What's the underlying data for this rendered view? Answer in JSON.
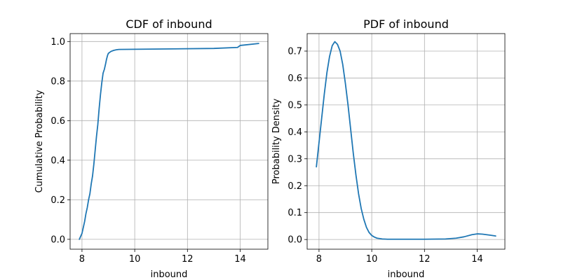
{
  "colors": {
    "line": "#1f77b4",
    "grid": "#b0b0b0"
  },
  "chart_data": [
    {
      "type": "line",
      "title": "CDF of inbound",
      "xlabel": "inbound",
      "ylabel": "Cumulative Probability",
      "xlim": [
        7.55,
        15.05
      ],
      "ylim": [
        -0.05,
        1.04
      ],
      "xticks": [
        8,
        10,
        12,
        14
      ],
      "yticks": [
        0.0,
        0.2,
        0.4,
        0.6,
        0.8,
        1.0
      ],
      "grid": true,
      "series": [
        {
          "x": [
            7.9,
            8.0,
            8.05,
            8.1,
            8.15,
            8.2,
            8.25,
            8.3,
            8.35,
            8.4,
            8.45,
            8.5,
            8.55,
            8.6,
            8.65,
            8.7,
            8.75,
            8.8,
            8.85,
            8.9,
            8.93,
            8.97,
            9.0,
            9.05,
            9.1,
            9.2,
            9.3,
            9.4,
            13.0,
            13.9,
            14.0,
            14.7
          ],
          "y": [
            0.0,
            0.03,
            0.06,
            0.09,
            0.13,
            0.16,
            0.2,
            0.23,
            0.28,
            0.32,
            0.38,
            0.45,
            0.52,
            0.58,
            0.66,
            0.73,
            0.79,
            0.84,
            0.86,
            0.89,
            0.91,
            0.93,
            0.94,
            0.945,
            0.95,
            0.955,
            0.958,
            0.96,
            0.965,
            0.97,
            0.98,
            0.99
          ]
        }
      ]
    },
    {
      "type": "line",
      "title": "PDF of inbound",
      "xlabel": "inbound",
      "ylabel": "Probability Density",
      "xlim": [
        7.55,
        15.05
      ],
      "ylim": [
        -0.036,
        0.765
      ],
      "xticks": [
        8,
        10,
        12,
        14
      ],
      "yticks": [
        0.0,
        0.1,
        0.2,
        0.3,
        0.4,
        0.5,
        0.6,
        0.7
      ],
      "grid": true,
      "series": [
        {
          "x": [
            7.9,
            8.0,
            8.1,
            8.2,
            8.3,
            8.4,
            8.5,
            8.6,
            8.7,
            8.8,
            8.9,
            9.0,
            9.1,
            9.2,
            9.3,
            9.4,
            9.5,
            9.6,
            9.7,
            9.8,
            9.9,
            10.0,
            10.1,
            10.2,
            10.4,
            10.6,
            11.0,
            12.0,
            12.8,
            13.2,
            13.5,
            13.8,
            14.0,
            14.2,
            14.5,
            14.7
          ],
          "y": [
            0.27,
            0.36,
            0.45,
            0.54,
            0.62,
            0.68,
            0.72,
            0.735,
            0.725,
            0.7,
            0.65,
            0.58,
            0.5,
            0.41,
            0.32,
            0.24,
            0.17,
            0.115,
            0.075,
            0.045,
            0.026,
            0.015,
            0.009,
            0.005,
            0.002,
            0.001,
            0.001,
            0.001,
            0.002,
            0.005,
            0.01,
            0.018,
            0.021,
            0.02,
            0.016,
            0.013
          ]
        }
      ]
    }
  ]
}
